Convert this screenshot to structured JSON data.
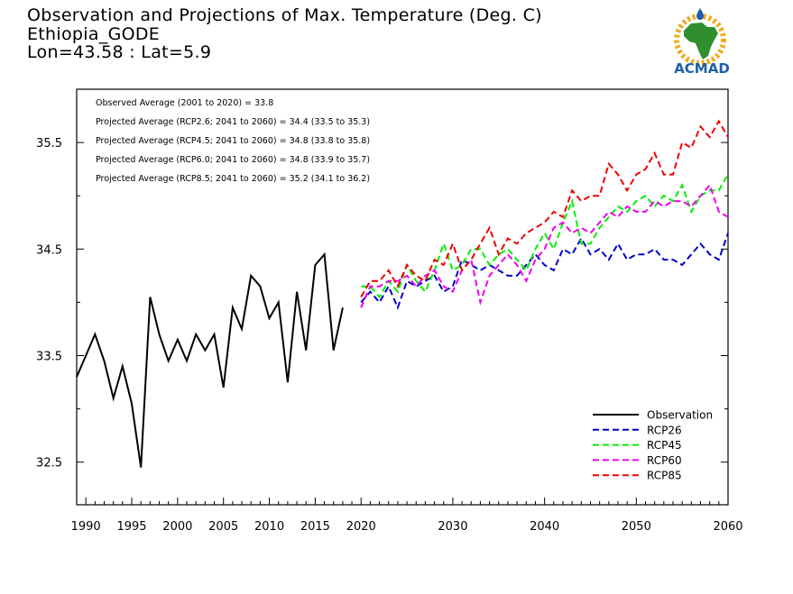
{
  "title": {
    "line1": "Observation and Projections of Max. Temperature (Deg. C)",
    "line2": "Ethiopia_GODE",
    "line3": "Lon=43.58 : Lat=5.9"
  },
  "logo": {
    "text": "ACMAD",
    "icon": "africa-sun-logo-icon"
  },
  "annotations": [
    "Observed Average (2001 to 2020) = 33.8",
    "Projected Average (RCP2.6; 2041 to 2060) = 34.4 (33.5 to 35.3)",
    "Projected Average (RCP4.5; 2041 to 2060) = 34.8 (33.8 to 35.8)",
    "Projected Average (RCP6.0; 2041 to 2060) = 34.8 (33.9 to 35.7)",
    "Projected Average (RCP8.5; 2041 to 2060) = 35.2 (34.1 to 36.2)"
  ],
  "chart_data": {
    "type": "line",
    "xlim": [
      1989,
      2060
    ],
    "ylim": [
      32.1,
      36.0
    ],
    "x_ticks": [
      {
        "value": 1990,
        "label": "1990"
      },
      {
        "value": 1995,
        "label": "1995"
      },
      {
        "value": 2000,
        "label": "2000"
      },
      {
        "value": 2005,
        "label": "2005"
      },
      {
        "value": 2010,
        "label": "2010"
      },
      {
        "value": 2015,
        "label": "2015"
      },
      {
        "value": 2020,
        "label": "2020"
      },
      {
        "value": 2030,
        "label": "2030"
      },
      {
        "value": 2040,
        "label": "2040"
      },
      {
        "value": 2050,
        "label": "2050"
      },
      {
        "value": 2060,
        "label": "2060"
      }
    ],
    "y_ticks": [
      {
        "value": 32.5,
        "label": "32.5"
      },
      {
        "value": 33.5,
        "label": "33.5"
      },
      {
        "value": 34.5,
        "label": "34.5"
      },
      {
        "value": 35.5,
        "label": "35.5"
      }
    ],
    "legend_position": "bottom-right",
    "series": [
      {
        "name": "Observation",
        "color": "#000000",
        "dashed": false,
        "x_start": 1989,
        "values": [
          33.3,
          33.5,
          33.7,
          33.45,
          33.1,
          33.4,
          33.05,
          32.45,
          34.05,
          33.7,
          33.45,
          33.65,
          33.45,
          33.7,
          33.55,
          33.7,
          33.2,
          33.95,
          33.75,
          34.25,
          34.15,
          33.85,
          34.0,
          33.25,
          34.1,
          33.55,
          34.35,
          34.45,
          33.55,
          33.95
        ]
      },
      {
        "name": "RCP26",
        "color": "#0000cc",
        "dashed": true,
        "x_start": 2020,
        "values": [
          34.0,
          34.1,
          34.0,
          34.15,
          33.95,
          34.2,
          34.15,
          34.2,
          34.25,
          34.1,
          34.15,
          34.4,
          34.35,
          34.3,
          34.35,
          34.3,
          34.25,
          34.25,
          34.35,
          34.45,
          34.35,
          34.3,
          34.5,
          34.45,
          34.6,
          34.45,
          34.5,
          34.4,
          34.55,
          34.4,
          34.45,
          34.45,
          34.5,
          34.4,
          34.4,
          34.35,
          34.45,
          34.55,
          34.45,
          34.4,
          34.65
        ]
      },
      {
        "name": "RCP45",
        "color": "#00ee00",
        "dashed": true,
        "x_start": 2020,
        "values": [
          34.15,
          34.15,
          34.05,
          34.2,
          34.1,
          34.35,
          34.2,
          34.1,
          34.3,
          34.55,
          34.3,
          34.35,
          34.5,
          34.5,
          34.35,
          34.45,
          34.5,
          34.4,
          34.3,
          34.5,
          34.65,
          34.5,
          34.75,
          34.95,
          34.55,
          34.55,
          34.7,
          34.8,
          34.9,
          34.85,
          34.95,
          35.0,
          34.9,
          35.0,
          34.95,
          35.1,
          34.85,
          35.0,
          35.05,
          35.05,
          35.2
        ]
      },
      {
        "name": "RCP60",
        "color": "#ee00ee",
        "dashed": true,
        "x_start": 2020,
        "values": [
          33.95,
          34.15,
          34.15,
          34.2,
          34.2,
          34.25,
          34.15,
          34.25,
          34.3,
          34.15,
          34.1,
          34.3,
          34.4,
          34.0,
          34.25,
          34.35,
          34.45,
          34.35,
          34.2,
          34.4,
          34.5,
          34.7,
          34.75,
          34.65,
          34.7,
          34.65,
          34.75,
          34.85,
          34.8,
          34.9,
          34.85,
          34.85,
          34.95,
          34.9,
          34.95,
          34.95,
          34.9,
          35.0,
          35.1,
          34.85,
          34.8
        ]
      },
      {
        "name": "RCP85",
        "color": "#ee0000",
        "dashed": true,
        "x_start": 2020,
        "values": [
          34.05,
          34.2,
          34.2,
          34.3,
          34.15,
          34.35,
          34.25,
          34.2,
          34.4,
          34.35,
          34.55,
          34.3,
          34.4,
          34.55,
          34.7,
          34.45,
          34.6,
          34.55,
          34.65,
          34.7,
          34.75,
          34.85,
          34.8,
          35.05,
          34.95,
          35.0,
          35.0,
          35.3,
          35.2,
          35.05,
          35.2,
          35.25,
          35.4,
          35.2,
          35.2,
          35.5,
          35.45,
          35.65,
          35.55,
          35.7,
          35.55
        ]
      }
    ]
  }
}
